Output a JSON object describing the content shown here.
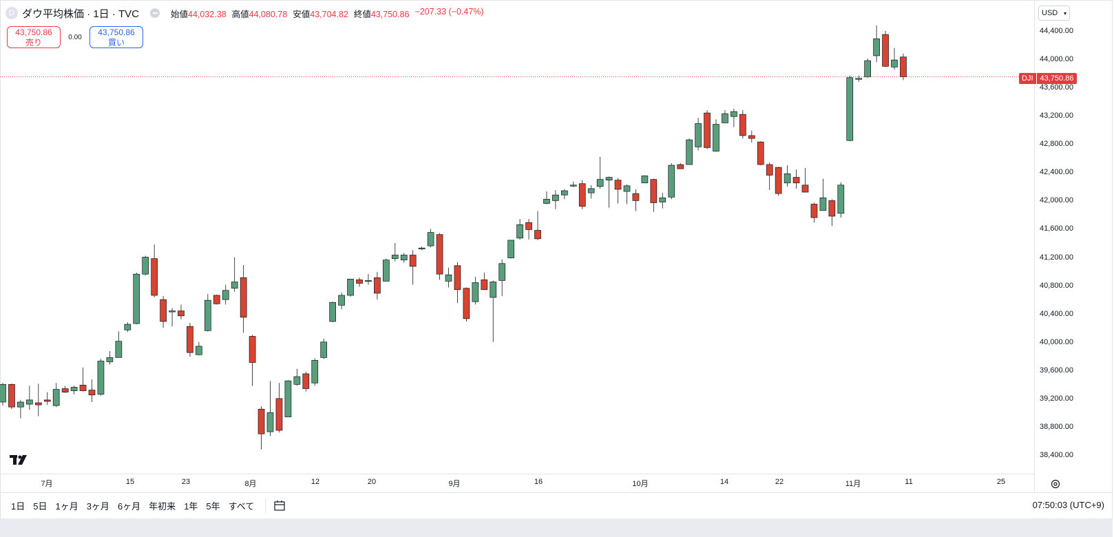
{
  "header": {
    "symbol_initial": "D",
    "title": "ダウ平均株価 · 1日 · TVC",
    "ohlc": [
      {
        "label": "始値",
        "value": "44,032.38"
      },
      {
        "label": "高値",
        "value": "44,080.78"
      },
      {
        "label": "安値",
        "value": "43,704.82"
      },
      {
        "label": "終値",
        "value": "43,750.86"
      }
    ],
    "change": "−207.33 (−0.47%)"
  },
  "trade": {
    "sell_price": "43,750.86",
    "sell_label": "売り",
    "spread": "0.00",
    "buy_price": "43,750.86",
    "buy_label": "買い"
  },
  "price_axis": {
    "currency": "USD",
    "ticks": [
      "44,400.00",
      "44,000.00",
      "43,600.00",
      "43,200.00",
      "42,800.00",
      "42,400.00",
      "42,000.00",
      "41,600.00",
      "41,200.00",
      "40,800.00",
      "40,400.00",
      "40,000.00",
      "39,600.00",
      "39,200.00",
      "38,800.00",
      "38,400.00"
    ],
    "last_symbol": "DJI",
    "last_price": "43,750.86"
  },
  "time_axis": {
    "ticks": [
      "7月",
      "15",
      "23",
      "8月",
      "12",
      "20",
      "9月",
      "16",
      "10月",
      "14",
      "22",
      "11月",
      "11",
      "25"
    ]
  },
  "toolbar": {
    "ranges": [
      "1日",
      "5日",
      "1ヶ月",
      "3ヶ月",
      "6ヶ月",
      "年初来",
      "1年",
      "5年",
      "すべて"
    ],
    "time": "07:50:03 (UTC+9)"
  },
  "colors": {
    "up": "#5b9e7b",
    "down": "#d84432",
    "last_line": "#e03e3e"
  },
  "chart_data": {
    "type": "candlestick",
    "title": "",
    "ylim": [
      38200,
      44650
    ],
    "candles": [
      {
        "o": 39150,
        "h": 39420,
        "l": 39100,
        "c": 39400
      },
      {
        "o": 39400,
        "h": 39410,
        "l": 39050,
        "c": 39080
      },
      {
        "o": 39080,
        "h": 39180,
        "l": 38920,
        "c": 39150
      },
      {
        "o": 39120,
        "h": 39380,
        "l": 39040,
        "c": 39180
      },
      {
        "o": 39140,
        "h": 39410,
        "l": 38950,
        "c": 39110
      },
      {
        "o": 39180,
        "h": 39290,
        "l": 39110,
        "c": 39160
      },
      {
        "o": 39100,
        "h": 39420,
        "l": 39080,
        "c": 39330
      },
      {
        "o": 39340,
        "h": 39380,
        "l": 39280,
        "c": 39290
      },
      {
        "o": 39310,
        "h": 39380,
        "l": 39260,
        "c": 39360
      },
      {
        "o": 39390,
        "h": 39640,
        "l": 39300,
        "c": 39310
      },
      {
        "o": 39320,
        "h": 39470,
        "l": 39150,
        "c": 39250
      },
      {
        "o": 39260,
        "h": 39760,
        "l": 39240,
        "c": 39730
      },
      {
        "o": 39720,
        "h": 39870,
        "l": 39680,
        "c": 39780
      },
      {
        "o": 39780,
        "h": 40150,
        "l": 39780,
        "c": 40010
      },
      {
        "o": 40170,
        "h": 40280,
        "l": 40140,
        "c": 40250
      },
      {
        "o": 40260,
        "h": 40980,
        "l": 40250,
        "c": 40960
      },
      {
        "o": 40960,
        "h": 41220,
        "l": 40940,
        "c": 41200
      },
      {
        "o": 41180,
        "h": 41380,
        "l": 40630,
        "c": 40660
      },
      {
        "o": 40600,
        "h": 40650,
        "l": 40200,
        "c": 40290
      },
      {
        "o": 40430,
        "h": 40480,
        "l": 40220,
        "c": 40440
      },
      {
        "o": 40440,
        "h": 40530,
        "l": 40320,
        "c": 40370
      },
      {
        "o": 40220,
        "h": 40270,
        "l": 39790,
        "c": 39850
      },
      {
        "o": 39820,
        "h": 40000,
        "l": 39810,
        "c": 39940
      },
      {
        "o": 40160,
        "h": 40680,
        "l": 40150,
        "c": 40590
      },
      {
        "o": 40660,
        "h": 40670,
        "l": 40530,
        "c": 40540
      },
      {
        "o": 40600,
        "h": 40810,
        "l": 40530,
        "c": 40730
      },
      {
        "o": 40760,
        "h": 41200,
        "l": 40710,
        "c": 40850
      },
      {
        "o": 40910,
        "h": 41090,
        "l": 40130,
        "c": 40350
      },
      {
        "o": 40080,
        "h": 40100,
        "l": 39380,
        "c": 39710
      },
      {
        "o": 39050,
        "h": 39090,
        "l": 38480,
        "c": 38700
      },
      {
        "o": 38730,
        "h": 39450,
        "l": 38670,
        "c": 39000
      },
      {
        "o": 39200,
        "h": 39420,
        "l": 38720,
        "c": 38750
      },
      {
        "o": 38940,
        "h": 39460,
        "l": 38950,
        "c": 39450
      },
      {
        "o": 39400,
        "h": 39620,
        "l": 39380,
        "c": 39510
      },
      {
        "o": 39550,
        "h": 39580,
        "l": 39300,
        "c": 39340
      },
      {
        "o": 39420,
        "h": 39770,
        "l": 39380,
        "c": 39740
      },
      {
        "o": 39780,
        "h": 40050,
        "l": 39760,
        "c": 40000
      },
      {
        "o": 40290,
        "h": 40570,
        "l": 40280,
        "c": 40560
      },
      {
        "o": 40520,
        "h": 40700,
        "l": 40460,
        "c": 40660
      },
      {
        "o": 40660,
        "h": 40890,
        "l": 40640,
        "c": 40890
      },
      {
        "o": 40880,
        "h": 40910,
        "l": 40780,
        "c": 40830
      },
      {
        "o": 40860,
        "h": 40960,
        "l": 40810,
        "c": 40870
      },
      {
        "o": 40910,
        "h": 40990,
        "l": 40600,
        "c": 40690
      },
      {
        "o": 40860,
        "h": 41180,
        "l": 40860,
        "c": 41160
      },
      {
        "o": 41180,
        "h": 41400,
        "l": 41140,
        "c": 41230
      },
      {
        "o": 41160,
        "h": 41260,
        "l": 41120,
        "c": 41230
      },
      {
        "o": 41230,
        "h": 41300,
        "l": 40810,
        "c": 41070
      },
      {
        "o": 41330,
        "h": 41350,
        "l": 41300,
        "c": 41330
      },
      {
        "o": 41360,
        "h": 41600,
        "l": 41340,
        "c": 41550
      },
      {
        "o": 41520,
        "h": 41540,
        "l": 40880,
        "c": 40960
      },
      {
        "o": 40860,
        "h": 41050,
        "l": 40770,
        "c": 40950
      },
      {
        "o": 41080,
        "h": 41130,
        "l": 40550,
        "c": 40740
      },
      {
        "o": 40760,
        "h": 40770,
        "l": 40290,
        "c": 40330
      },
      {
        "o": 40570,
        "h": 40920,
        "l": 40530,
        "c": 40840
      },
      {
        "o": 40880,
        "h": 40980,
        "l": 40740,
        "c": 40740
      },
      {
        "o": 40630,
        "h": 40870,
        "l": 40000,
        "c": 40850
      },
      {
        "o": 40870,
        "h": 41170,
        "l": 40650,
        "c": 41110
      },
      {
        "o": 41190,
        "h": 41440,
        "l": 41180,
        "c": 41440
      },
      {
        "o": 41470,
        "h": 41740,
        "l": 41450,
        "c": 41660
      },
      {
        "o": 41690,
        "h": 41740,
        "l": 41450,
        "c": 41590
      },
      {
        "o": 41580,
        "h": 41850,
        "l": 41440,
        "c": 41460
      },
      {
        "o": 41960,
        "h": 42130,
        "l": 41950,
        "c": 42020
      },
      {
        "o": 42000,
        "h": 42150,
        "l": 41880,
        "c": 42080
      },
      {
        "o": 42080,
        "h": 42160,
        "l": 42020,
        "c": 42140
      },
      {
        "o": 42220,
        "h": 42270,
        "l": 42190,
        "c": 42220
      },
      {
        "o": 42240,
        "h": 42290,
        "l": 41880,
        "c": 41920
      },
      {
        "o": 42110,
        "h": 42220,
        "l": 42030,
        "c": 42170
      },
      {
        "o": 42200,
        "h": 42620,
        "l": 42170,
        "c": 42300
      },
      {
        "o": 42290,
        "h": 42340,
        "l": 41900,
        "c": 42330
      },
      {
        "o": 42290,
        "h": 42320,
        "l": 41960,
        "c": 42160
      },
      {
        "o": 42130,
        "h": 42230,
        "l": 41950,
        "c": 42210
      },
      {
        "o": 42100,
        "h": 42160,
        "l": 41850,
        "c": 42000
      },
      {
        "o": 42250,
        "h": 42360,
        "l": 42250,
        "c": 42350
      },
      {
        "o": 42300,
        "h": 42310,
        "l": 41840,
        "c": 41970
      },
      {
        "o": 41980,
        "h": 42110,
        "l": 41890,
        "c": 42040
      },
      {
        "o": 42050,
        "h": 42530,
        "l": 42020,
        "c": 42500
      },
      {
        "o": 42510,
        "h": 42530,
        "l": 42470,
        "c": 42450
      },
      {
        "o": 42510,
        "h": 42880,
        "l": 42510,
        "c": 42860
      },
      {
        "o": 42760,
        "h": 43170,
        "l": 42710,
        "c": 43090
      },
      {
        "o": 43240,
        "h": 43280,
        "l": 42730,
        "c": 42750
      },
      {
        "o": 42700,
        "h": 43150,
        "l": 42690,
        "c": 43080
      },
      {
        "o": 43100,
        "h": 43280,
        "l": 43100,
        "c": 43230
      },
      {
        "o": 43190,
        "h": 43300,
        "l": 43040,
        "c": 43260
      },
      {
        "o": 43220,
        "h": 43280,
        "l": 42880,
        "c": 42920
      },
      {
        "o": 42920,
        "h": 42990,
        "l": 42820,
        "c": 42880
      },
      {
        "o": 42830,
        "h": 42840,
        "l": 42500,
        "c": 42510
      },
      {
        "o": 42510,
        "h": 42540,
        "l": 42150,
        "c": 42360
      },
      {
        "o": 42470,
        "h": 42480,
        "l": 42070,
        "c": 42100
      },
      {
        "o": 42250,
        "h": 42500,
        "l": 42200,
        "c": 42380
      },
      {
        "o": 42330,
        "h": 42440,
        "l": 42170,
        "c": 42250
      },
      {
        "o": 42220,
        "h": 42460,
        "l": 42140,
        "c": 42120
      },
      {
        "o": 41950,
        "h": 41970,
        "l": 41690,
        "c": 41760
      },
      {
        "o": 41860,
        "h": 42310,
        "l": 41860,
        "c": 42040
      },
      {
        "o": 42000,
        "h": 42020,
        "l": 41640,
        "c": 41780
      },
      {
        "o": 41820,
        "h": 42260,
        "l": 41760,
        "c": 42220
      },
      {
        "o": 42850,
        "h": 43770,
        "l": 42840,
        "c": 43740
      },
      {
        "o": 43720,
        "h": 43770,
        "l": 43680,
        "c": 43730
      },
      {
        "o": 43750,
        "h": 44010,
        "l": 43740,
        "c": 43980
      },
      {
        "o": 44050,
        "h": 44480,
        "l": 43960,
        "c": 44290
      },
      {
        "o": 44350,
        "h": 44400,
        "l": 43890,
        "c": 43900
      },
      {
        "o": 43890,
        "h": 44160,
        "l": 43850,
        "c": 43990
      },
      {
        "o": 44032.38,
        "h": 44080.78,
        "l": 43704.82,
        "c": 43750.86
      }
    ]
  }
}
